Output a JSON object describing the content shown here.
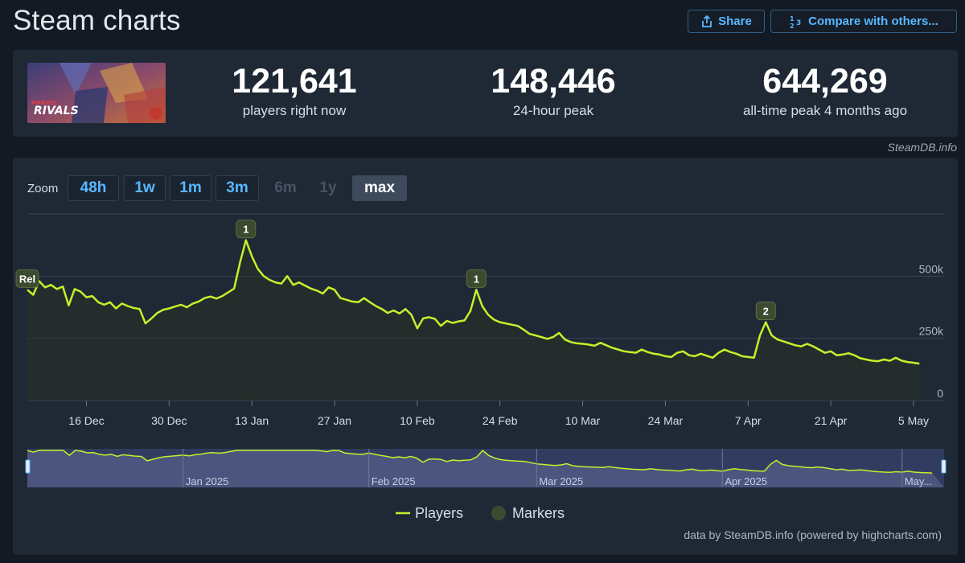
{
  "page": {
    "title": "Steam charts"
  },
  "toolbar": {
    "share_label": "Share",
    "compare_label": "Compare with others..."
  },
  "game": {
    "thumbnail_text": "RIVALS",
    "thumbnail_brand": "MARVEL"
  },
  "stats": {
    "current": {
      "value": "121,641",
      "label": "players right now"
    },
    "peak24": {
      "value": "148,446",
      "label": "24-hour peak"
    },
    "alltime": {
      "value": "644,269",
      "label": "all-time peak 4 months ago"
    }
  },
  "credits": {
    "top": "SteamDB.info",
    "bottom": "data by SteamDB.info (powered by highcharts.com)"
  },
  "zoom": {
    "label": "Zoom",
    "buttons": [
      {
        "label": "48h",
        "state": "enabled"
      },
      {
        "label": "1w",
        "state": "enabled"
      },
      {
        "label": "1m",
        "state": "enabled"
      },
      {
        "label": "3m",
        "state": "enabled"
      },
      {
        "label": "6m",
        "state": "disabled"
      },
      {
        "label": "1y",
        "state": "disabled"
      },
      {
        "label": "max",
        "state": "active"
      }
    ]
  },
  "colors": {
    "line": "#c5f02a",
    "marker_fill": "#3b4a30",
    "navigator_bg": "#3a4370",
    "grid": "#3a4554"
  },
  "chart_data": {
    "type": "line",
    "title": "",
    "ylabel": "",
    "ylim": [
      0,
      750000
    ],
    "yticks": [
      0,
      250000,
      500000
    ],
    "ytick_labels": [
      "0",
      "250k",
      "500k"
    ],
    "x_domain": [
      "2024-12-06",
      "2025-05-08"
    ],
    "xticks": [
      "2024-12-16",
      "2024-12-30",
      "2025-01-13",
      "2025-01-27",
      "2025-02-10",
      "2025-02-24",
      "2025-03-10",
      "2025-03-24",
      "2025-04-07",
      "2025-04-21",
      "2025-05-05"
    ],
    "xtick_labels": [
      "16 Dec",
      "30 Dec",
      "13 Jan",
      "27 Jan",
      "10 Feb",
      "24 Feb",
      "10 Mar",
      "24 Mar",
      "7 Apr",
      "21 Apr",
      "5 May"
    ],
    "series": [
      {
        "name": "Players",
        "points": [
          [
            "2024-12-06",
            445000
          ],
          [
            "2024-12-07",
            425000
          ],
          [
            "2024-12-08",
            480000
          ],
          [
            "2024-12-09",
            455000
          ],
          [
            "2024-12-10",
            465000
          ],
          [
            "2024-12-11",
            448000
          ],
          [
            "2024-12-12",
            458000
          ],
          [
            "2024-12-13",
            382000
          ],
          [
            "2024-12-14",
            448000
          ],
          [
            "2024-12-15",
            438000
          ],
          [
            "2024-12-16",
            415000
          ],
          [
            "2024-12-17",
            420000
          ],
          [
            "2024-12-18",
            395000
          ],
          [
            "2024-12-19",
            385000
          ],
          [
            "2024-12-20",
            395000
          ],
          [
            "2024-12-21",
            370000
          ],
          [
            "2024-12-22",
            390000
          ],
          [
            "2024-12-23",
            380000
          ],
          [
            "2024-12-24",
            372000
          ],
          [
            "2024-12-25",
            368000
          ],
          [
            "2024-12-26",
            310000
          ],
          [
            "2024-12-27",
            330000
          ],
          [
            "2024-12-28",
            352000
          ],
          [
            "2024-12-29",
            365000
          ],
          [
            "2024-12-30",
            370000
          ],
          [
            "2024-12-31",
            378000
          ],
          [
            "2025-01-01",
            385000
          ],
          [
            "2025-01-02",
            375000
          ],
          [
            "2025-01-03",
            390000
          ],
          [
            "2025-01-04",
            398000
          ],
          [
            "2025-01-05",
            412000
          ],
          [
            "2025-01-06",
            418000
          ],
          [
            "2025-01-07",
            410000
          ],
          [
            "2025-01-08",
            420000
          ],
          [
            "2025-01-09",
            435000
          ],
          [
            "2025-01-10",
            450000
          ],
          [
            "2025-01-11",
            555000
          ],
          [
            "2025-01-12",
            644269
          ],
          [
            "2025-01-13",
            580000
          ],
          [
            "2025-01-14",
            530000
          ],
          [
            "2025-01-15",
            500000
          ],
          [
            "2025-01-16",
            485000
          ],
          [
            "2025-01-17",
            475000
          ],
          [
            "2025-01-18",
            470000
          ],
          [
            "2025-01-19",
            500000
          ],
          [
            "2025-01-20",
            465000
          ],
          [
            "2025-01-21",
            475000
          ],
          [
            "2025-01-22",
            462000
          ],
          [
            "2025-01-23",
            450000
          ],
          [
            "2025-01-24",
            442000
          ],
          [
            "2025-01-25",
            430000
          ],
          [
            "2025-01-26",
            455000
          ],
          [
            "2025-01-27",
            445000
          ],
          [
            "2025-01-28",
            412000
          ],
          [
            "2025-01-29",
            405000
          ],
          [
            "2025-01-30",
            398000
          ],
          [
            "2025-01-31",
            395000
          ],
          [
            "2025-02-01",
            412000
          ],
          [
            "2025-02-02",
            395000
          ],
          [
            "2025-02-03",
            380000
          ],
          [
            "2025-02-04",
            368000
          ],
          [
            "2025-02-05",
            352000
          ],
          [
            "2025-02-06",
            362000
          ],
          [
            "2025-02-07",
            350000
          ],
          [
            "2025-02-08",
            368000
          ],
          [
            "2025-02-09",
            345000
          ],
          [
            "2025-02-10",
            290000
          ],
          [
            "2025-02-11",
            330000
          ],
          [
            "2025-02-12",
            335000
          ],
          [
            "2025-02-13",
            328000
          ],
          [
            "2025-02-14",
            300000
          ],
          [
            "2025-02-15",
            320000
          ],
          [
            "2025-02-16",
            312000
          ],
          [
            "2025-02-17",
            318000
          ],
          [
            "2025-02-18",
            322000
          ],
          [
            "2025-02-19",
            360000
          ],
          [
            "2025-02-20",
            445000
          ],
          [
            "2025-02-21",
            380000
          ],
          [
            "2025-02-22",
            345000
          ],
          [
            "2025-02-23",
            325000
          ],
          [
            "2025-02-24",
            315000
          ],
          [
            "2025-02-25",
            310000
          ],
          [
            "2025-02-26",
            305000
          ],
          [
            "2025-02-27",
            300000
          ],
          [
            "2025-02-28",
            285000
          ],
          [
            "2025-03-01",
            268000
          ],
          [
            "2025-03-02",
            262000
          ],
          [
            "2025-03-03",
            255000
          ],
          [
            "2025-03-04",
            248000
          ],
          [
            "2025-03-05",
            255000
          ],
          [
            "2025-03-06",
            272000
          ],
          [
            "2025-03-07",
            245000
          ],
          [
            "2025-03-08",
            235000
          ],
          [
            "2025-03-09",
            230000
          ],
          [
            "2025-03-10",
            228000
          ],
          [
            "2025-03-11",
            225000
          ],
          [
            "2025-03-12",
            220000
          ],
          [
            "2025-03-13",
            232000
          ],
          [
            "2025-03-14",
            222000
          ],
          [
            "2025-03-15",
            212000
          ],
          [
            "2025-03-16",
            205000
          ],
          [
            "2025-03-17",
            198000
          ],
          [
            "2025-03-18",
            195000
          ],
          [
            "2025-03-19",
            192000
          ],
          [
            "2025-03-20",
            205000
          ],
          [
            "2025-03-21",
            195000
          ],
          [
            "2025-03-22",
            188000
          ],
          [
            "2025-03-23",
            185000
          ],
          [
            "2025-03-24",
            178000
          ],
          [
            "2025-03-25",
            175000
          ],
          [
            "2025-03-26",
            192000
          ],
          [
            "2025-03-27",
            198000
          ],
          [
            "2025-03-28",
            182000
          ],
          [
            "2025-03-29",
            178000
          ],
          [
            "2025-03-30",
            188000
          ],
          [
            "2025-03-31",
            180000
          ],
          [
            "2025-04-01",
            172000
          ],
          [
            "2025-04-02",
            192000
          ],
          [
            "2025-04-03",
            205000
          ],
          [
            "2025-04-04",
            195000
          ],
          [
            "2025-04-05",
            188000
          ],
          [
            "2025-04-06",
            178000
          ],
          [
            "2025-04-07",
            175000
          ],
          [
            "2025-04-08",
            172000
          ],
          [
            "2025-04-09",
            262000
          ],
          [
            "2025-04-10",
            315000
          ],
          [
            "2025-04-11",
            262000
          ],
          [
            "2025-04-12",
            245000
          ],
          [
            "2025-04-13",
            238000
          ],
          [
            "2025-04-14",
            230000
          ],
          [
            "2025-04-15",
            222000
          ],
          [
            "2025-04-16",
            218000
          ],
          [
            "2025-04-17",
            228000
          ],
          [
            "2025-04-18",
            218000
          ],
          [
            "2025-04-19",
            205000
          ],
          [
            "2025-04-20",
            192000
          ],
          [
            "2025-04-21",
            198000
          ],
          [
            "2025-04-22",
            182000
          ],
          [
            "2025-04-23",
            185000
          ],
          [
            "2025-04-24",
            190000
          ],
          [
            "2025-04-25",
            182000
          ],
          [
            "2025-04-26",
            170000
          ],
          [
            "2025-04-27",
            165000
          ],
          [
            "2025-04-28",
            160000
          ],
          [
            "2025-04-29",
            158000
          ],
          [
            "2025-04-30",
            165000
          ],
          [
            "2025-05-01",
            160000
          ],
          [
            "2025-05-02",
            172000
          ],
          [
            "2025-05-03",
            160000
          ],
          [
            "2025-05-04",
            155000
          ],
          [
            "2025-05-05",
            152000
          ],
          [
            "2025-05-06",
            148446
          ]
        ]
      }
    ],
    "markers": [
      {
        "label": "Rel",
        "date": "2024-12-06",
        "value": 445000
      },
      {
        "label": "1",
        "date": "2025-01-12",
        "value": 644269
      },
      {
        "label": "1",
        "date": "2025-02-20",
        "value": 445000
      },
      {
        "label": "2",
        "date": "2025-04-10",
        "value": 315000
      }
    ],
    "legend": [
      {
        "name": "Players",
        "kind": "line"
      },
      {
        "name": "Markers",
        "kind": "dot"
      }
    ],
    "legend_position": "bottom-center",
    "navigator": {
      "labels": [
        "Jan 2025",
        "Feb 2025",
        "Mar 2025",
        "Apr 2025",
        "May..."
      ],
      "label_dates": [
        "2025-01-01",
        "2025-02-01",
        "2025-03-01",
        "2025-04-01",
        "2025-05-01"
      ]
    }
  }
}
